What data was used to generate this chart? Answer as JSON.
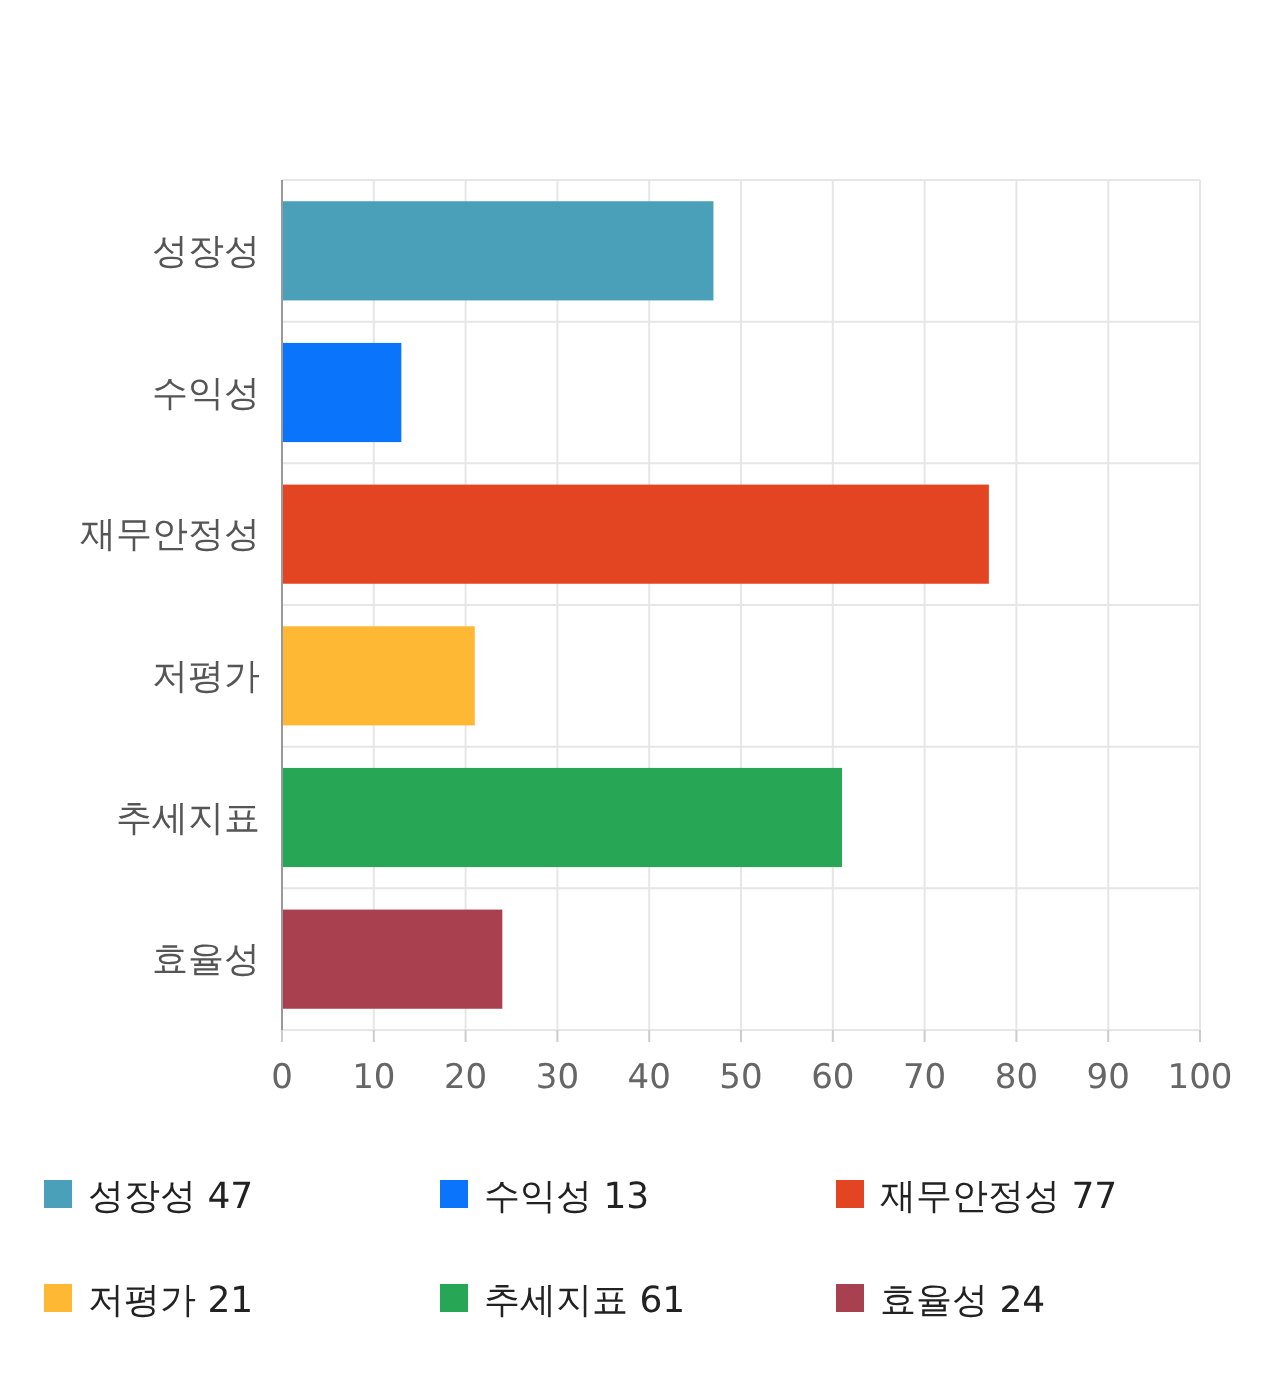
{
  "chart_data": {
    "type": "bar",
    "orientation": "horizontal",
    "stacked": true,
    "categories": [
      "성장성",
      "수익성",
      "재무안정성",
      "저평가",
      "추세지표",
      "효율성"
    ],
    "series": [
      {
        "name": "성장성 47",
        "color": "#4aa0b9",
        "values": [
          47,
          null,
          null,
          null,
          null,
          null
        ]
      },
      {
        "name": "수익성 13",
        "color": "#0a75fb",
        "values": [
          null,
          13,
          null,
          null,
          null,
          null
        ]
      },
      {
        "name": "재무안정성 77",
        "color": "#e34523",
        "values": [
          null,
          null,
          77,
          null,
          null,
          null
        ]
      },
      {
        "name": "저평가 21",
        "color": "#ffb833",
        "values": [
          null,
          null,
          null,
          21,
          null,
          null
        ]
      },
      {
        "name": "추세지표 61",
        "color": "#27a656",
        "values": [
          null,
          null,
          null,
          null,
          61,
          null
        ]
      },
      {
        "name": "효율성 24",
        "color": "#a8404f",
        "values": [
          null,
          null,
          null,
          null,
          null,
          24
        ]
      }
    ],
    "xlim": [
      0,
      100
    ],
    "xticks": [
      0,
      10,
      20,
      30,
      40,
      50,
      60,
      70,
      80,
      90,
      100
    ],
    "grid": true,
    "legend": "bottom"
  }
}
